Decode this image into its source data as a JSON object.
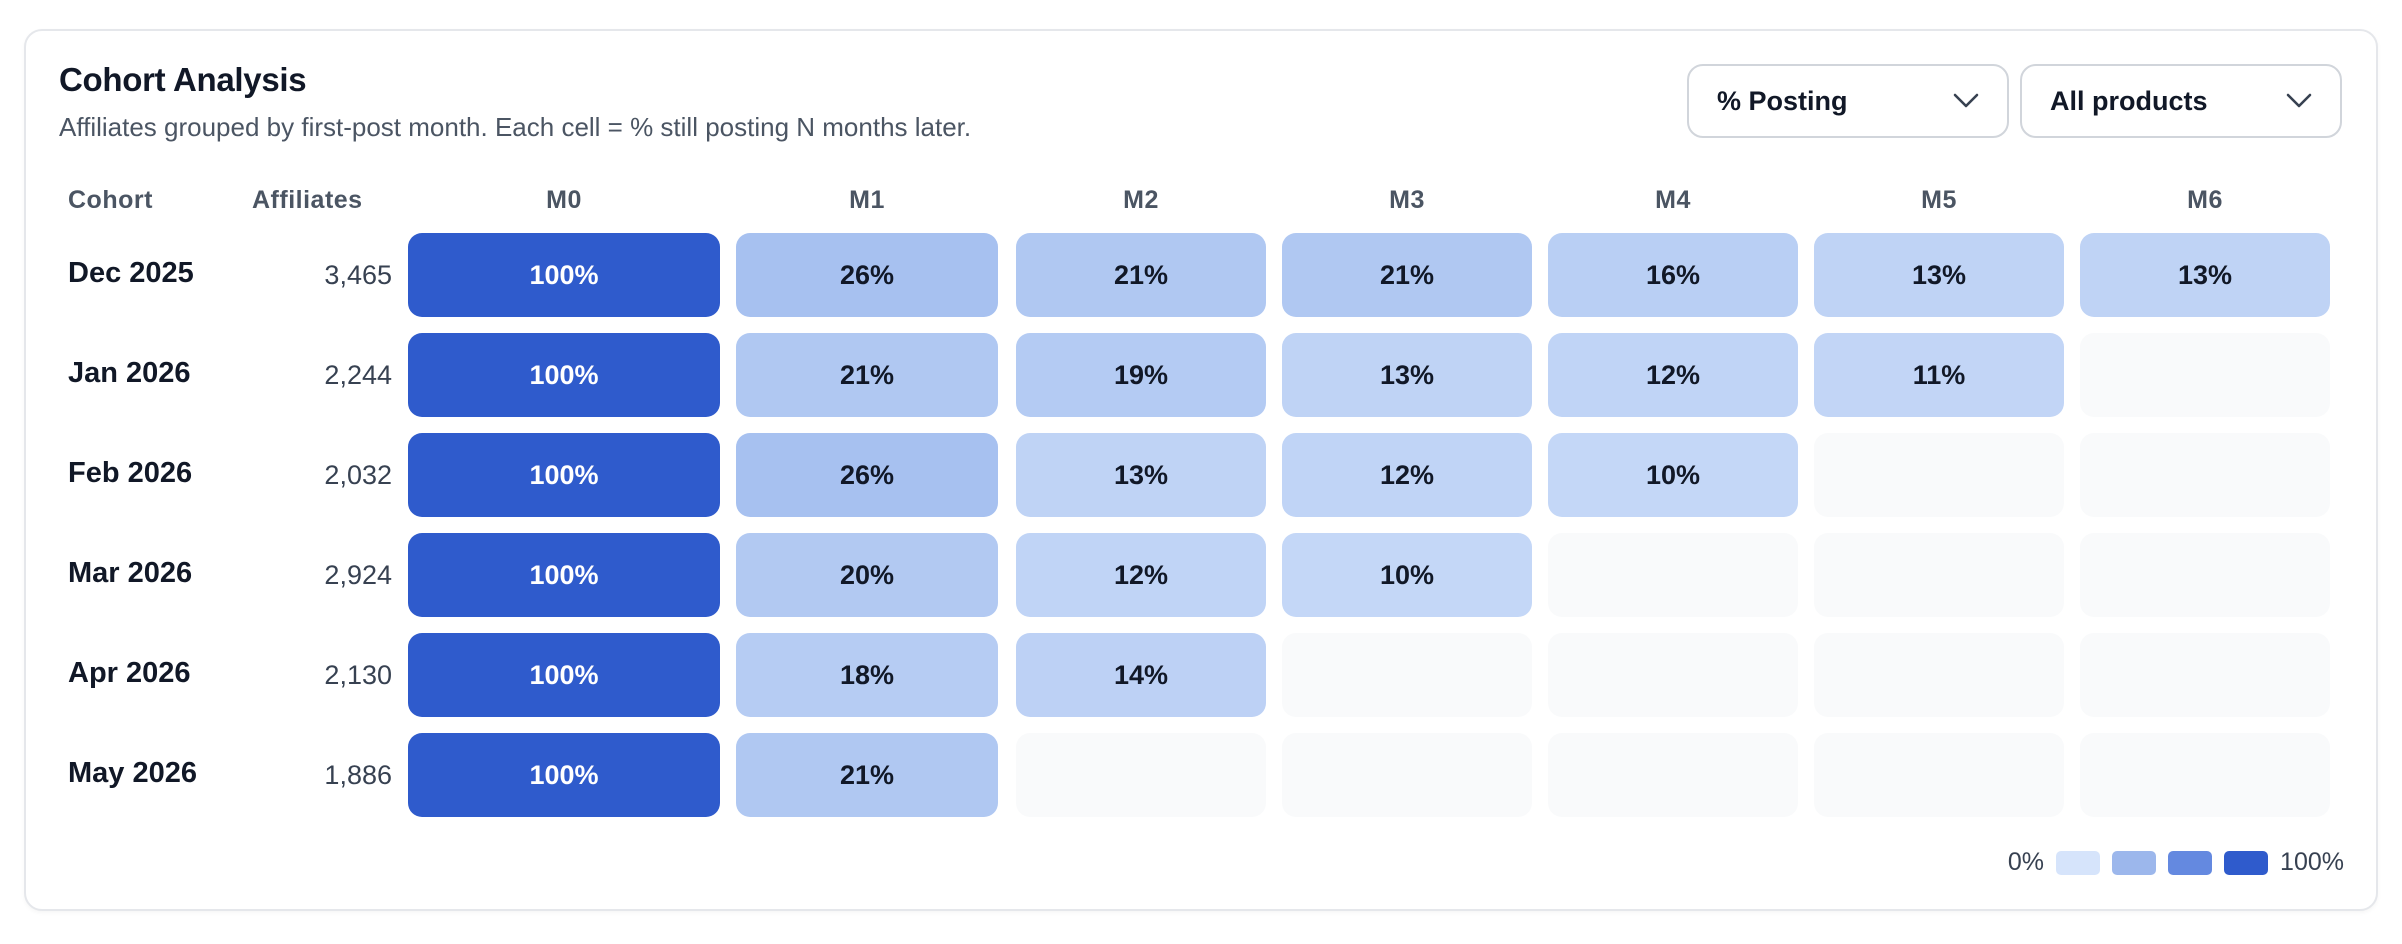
{
  "header": {
    "title": "Cohort Analysis",
    "subtitle": "Affiliates grouped by first-post month. Each cell = % still posting N months later."
  },
  "filters": {
    "metric": "% Posting",
    "product": "All products"
  },
  "columns": {
    "cohort": "Cohort",
    "affiliates": "Affiliates",
    "months": [
      "M0",
      "M1",
      "M2",
      "M3",
      "M4",
      "M5",
      "M6"
    ]
  },
  "legend": {
    "min_label": "0%",
    "max_label": "100%",
    "swatch_colors": [
      "#d6e4fb",
      "#9cb7ec",
      "#6489e0",
      "#2f5bcc"
    ]
  },
  "chart_data": {
    "type": "heatmap",
    "title": "Cohort Analysis",
    "x": [
      "M0",
      "M1",
      "M2",
      "M3",
      "M4",
      "M5",
      "M6"
    ],
    "rows": [
      {
        "cohort": "Dec 2025",
        "affiliates": "3,465",
        "values": [
          100,
          26,
          21,
          21,
          16,
          13,
          13
        ]
      },
      {
        "cohort": "Jan 2026",
        "affiliates": "2,244",
        "values": [
          100,
          21,
          19,
          13,
          12,
          11,
          null
        ]
      },
      {
        "cohort": "Feb 2026",
        "affiliates": "2,032",
        "values": [
          100,
          26,
          13,
          12,
          10,
          null,
          null
        ]
      },
      {
        "cohort": "Mar 2026",
        "affiliates": "2,924",
        "values": [
          100,
          20,
          12,
          10,
          null,
          null,
          null
        ]
      },
      {
        "cohort": "Apr 2026",
        "affiliates": "2,130",
        "values": [
          100,
          18,
          14,
          null,
          null,
          null,
          null
        ]
      },
      {
        "cohort": "May 2026",
        "affiliates": "1,886",
        "values": [
          100,
          21,
          null,
          null,
          null,
          null,
          null
        ]
      }
    ],
    "value_suffix": "%",
    "range": [
      0,
      100
    ],
    "colors": {
      "full": "#2f5bcc",
      "empty": "#f9fafb"
    }
  }
}
